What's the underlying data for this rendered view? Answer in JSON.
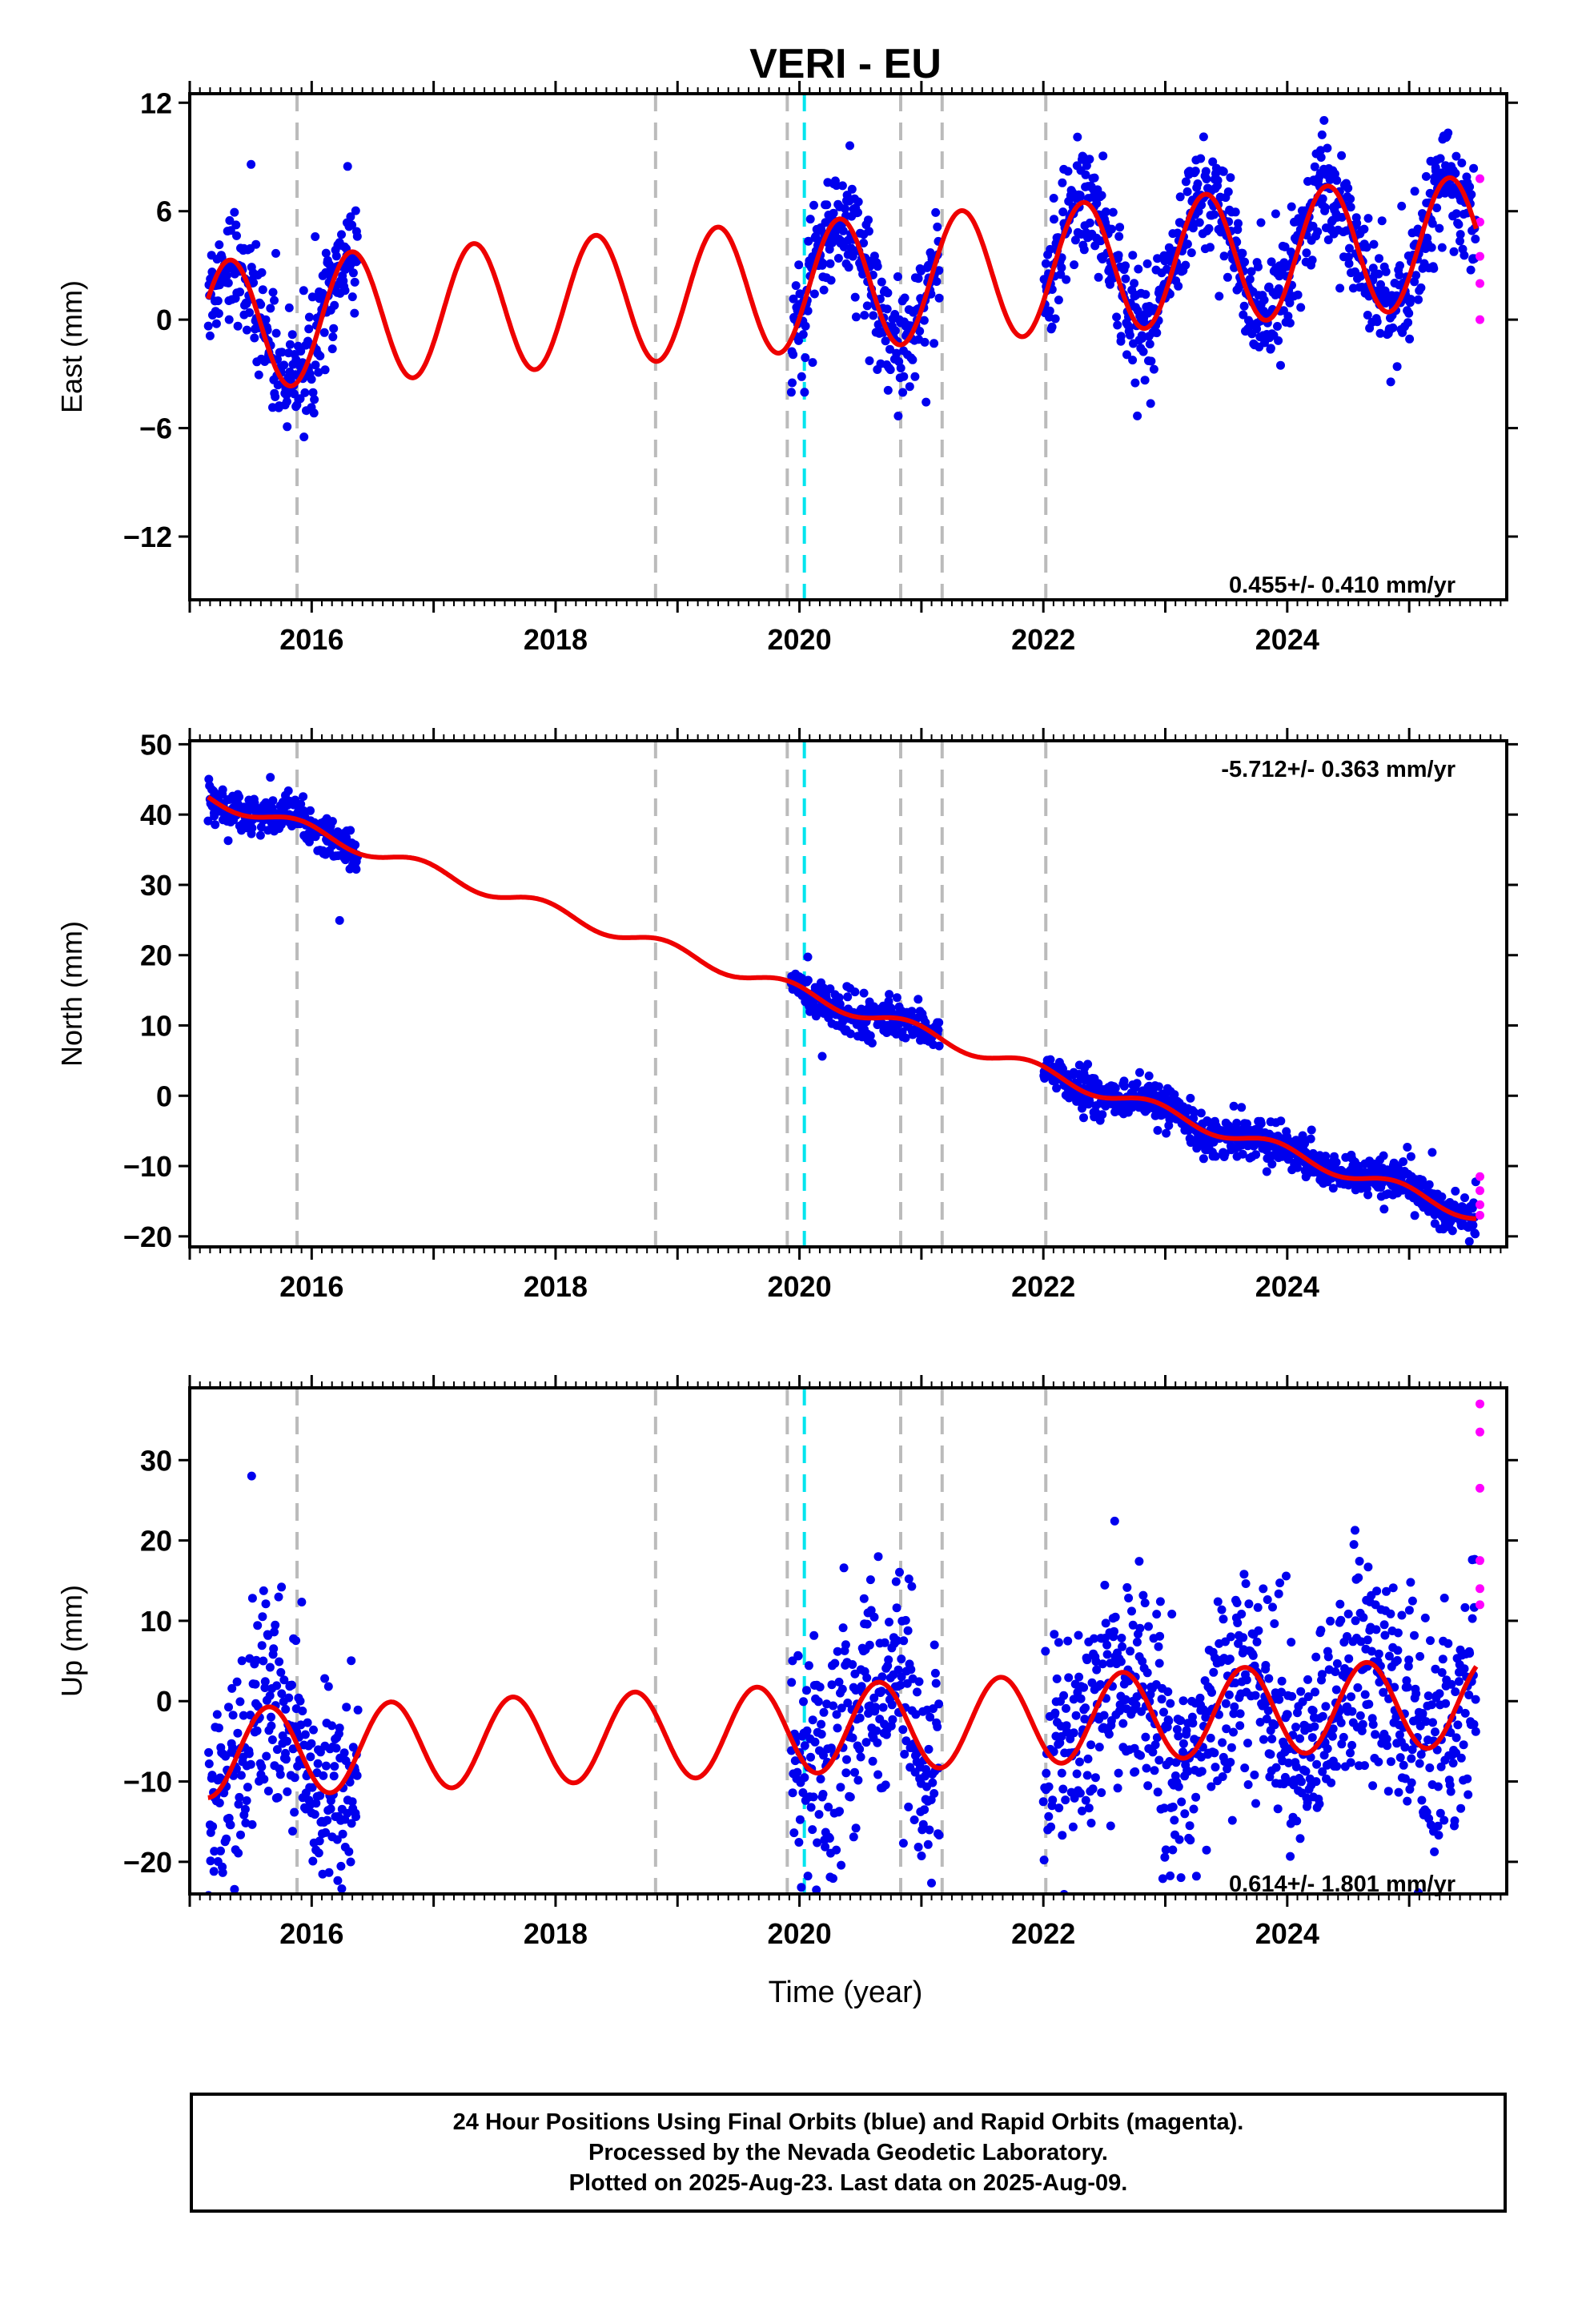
{
  "title": "VERI - EU",
  "xlabel": "Time (year)",
  "colors": {
    "final_orbits": "#0000ee",
    "rapid_orbits": "#ff00ff",
    "model": "#ee0000",
    "event_line": "#bbbbbb",
    "cyan_line": "#00e5ee"
  },
  "chart_data": [
    {
      "type": "scatter",
      "name": "east",
      "ylabel": "East (mm)",
      "rate_label": "0.455+/- 0.410 mm/yr",
      "xlim": [
        2015.0,
        2025.8
      ],
      "ylim": [
        -15.5,
        12.5
      ],
      "yticks": [
        12,
        6,
        0,
        -6,
        -12
      ],
      "ytick_labels": [
        "12",
        "6",
        "0",
        "−6",
        "−12"
      ],
      "xticks": [
        2016,
        2018,
        2020,
        2022,
        2024
      ],
      "xtick_labels": [
        "2016",
        "2018",
        "2020",
        "2022",
        "2024"
      ],
      "data_segments": [
        [
          2015.15,
          2016.38
        ],
        [
          2019.93,
          2021.15
        ],
        [
          2022.0,
          2025.55
        ]
      ],
      "model": {
        "trend": 0.455,
        "anchor_year": 2022.0,
        "anchor_value": 1.0,
        "amp": 3.6,
        "peak_fraction": 0.33
      },
      "rapid_points": [
        [
          2025.58,
          7.8
        ],
        [
          2025.58,
          5.4
        ],
        [
          2025.58,
          3.5
        ],
        [
          2025.58,
          2.0
        ],
        [
          2025.58,
          0.0
        ]
      ]
    },
    {
      "type": "scatter",
      "name": "north",
      "ylabel": "North (mm)",
      "rate_label": "-5.712+/- 0.363 mm/yr",
      "xlim": [
        2015.0,
        2025.8
      ],
      "ylim": [
        -21.5,
        50.5
      ],
      "yticks": [
        50,
        40,
        30,
        20,
        10,
        0,
        -10,
        -20
      ],
      "ytick_labels": [
        "50",
        "40",
        "30",
        "20",
        "10",
        "0",
        "−10",
        "−20"
      ],
      "xticks": [
        2016,
        2018,
        2020,
        2022,
        2024
      ],
      "xtick_labels": [
        "2016",
        "2018",
        "2020",
        "2022",
        "2024"
      ],
      "data_segments": [
        [
          2015.15,
          2016.38
        ],
        [
          2019.93,
          2021.15
        ],
        [
          2022.0,
          2025.55
        ]
      ],
      "model": {
        "trend": -5.712,
        "anchor_year": 2015.15,
        "anchor_value": 42.5,
        "amp": 1.0,
        "peak_fraction": 0.9
      },
      "rapid_points": [
        [
          2025.58,
          -11.5
        ],
        [
          2025.58,
          -13.5
        ],
        [
          2025.58,
          -15.5
        ],
        [
          2025.58,
          -17.0
        ]
      ]
    },
    {
      "type": "scatter",
      "name": "up",
      "ylabel": "Up (mm)",
      "rate_label": "0.614+/- 1.801 mm/yr",
      "xlim": [
        2015.0,
        2025.8
      ],
      "ylim": [
        -24,
        39
      ],
      "yticks": [
        30,
        20,
        10,
        0,
        -10,
        -20
      ],
      "ytick_labels": [
        "30",
        "20",
        "10",
        "0",
        "−10",
        "−20"
      ],
      "xticks": [
        2016,
        2018,
        2020,
        2022,
        2024
      ],
      "xtick_labels": [
        "2016",
        "2018",
        "2020",
        "2022",
        "2024"
      ],
      "data_segments": [
        [
          2015.15,
          2016.38
        ],
        [
          2019.93,
          2021.15
        ],
        [
          2022.0,
          2025.55
        ]
      ],
      "model": {
        "trend": 0.614,
        "anchor_year": 2020.5,
        "anchor_value": 0.0,
        "amp": 5.5,
        "peak_fraction": 0.65
      },
      "rapid_points": [
        [
          2025.58,
          37.0
        ],
        [
          2025.58,
          33.5
        ],
        [
          2025.58,
          26.5
        ],
        [
          2025.58,
          17.5
        ],
        [
          2025.58,
          14.0
        ],
        [
          2025.58,
          12.0
        ]
      ]
    }
  ],
  "event_lines": [
    2015.88,
    2018.82,
    2019.9,
    2020.83,
    2021.17,
    2022.02
  ],
  "cyan_lines": [
    2020.04
  ],
  "footer": {
    "line1": "24 Hour Positions Using Final Orbits (blue) and Rapid Orbits (magenta).",
    "line2": "Processed by the Nevada Geodetic Laboratory.",
    "line3": "Plotted on 2025-Aug-23. Last data on 2025-Aug-09."
  }
}
